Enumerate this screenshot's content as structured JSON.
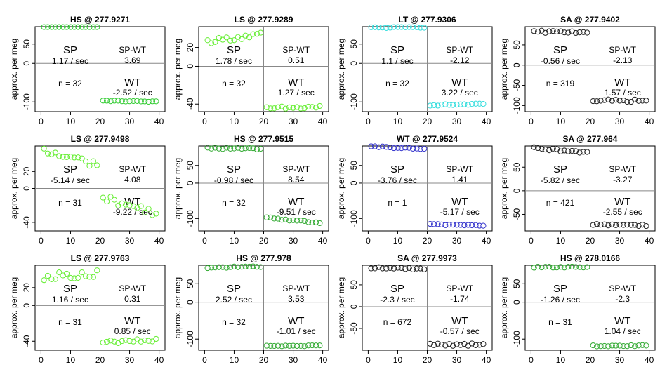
{
  "chart_data": [
    {
      "type": "scatter",
      "title": "HS @ 277.9271",
      "ylabel": "approx. per meg",
      "ylim": [
        -125,
        95
      ],
      "xlim": [
        -2,
        42
      ],
      "yticks": [
        "0",
        "50",
        "-100"
      ],
      "ytick_values": [
        0,
        50,
        -100
      ],
      "xticks": [
        "0",
        "10",
        "20",
        "30",
        "40"
      ],
      "sp_label": "SP",
      "sp_rate": "1.17 / sec",
      "diff_label": "SP-WT",
      "diff_value": "3.69",
      "n_text": "n = 32",
      "wt_label": "WT",
      "wt_rate": "-2.52 / sec",
      "color": "#33cc33",
      "sp_level": 95,
      "sp_slope": 0.05,
      "sp_noise": 1.0,
      "wt_level": -98,
      "wt_slope": -0.12,
      "wt_noise": 1.0
    },
    {
      "type": "scatter",
      "title": "LS @ 277.9289",
      "ylabel": "approx. per meg",
      "ylim": [
        -48,
        42
      ],
      "xlim": [
        -2,
        42
      ],
      "yticks": [
        "20",
        "0",
        "-40"
      ],
      "ytick_values": [
        20,
        0,
        -40
      ],
      "xticks": [
        "0",
        "10",
        "20",
        "30",
        "40"
      ],
      "sp_label": "SP",
      "sp_rate": "1.78 / sec",
      "diff_label": "SP-WT",
      "diff_value": "0.51",
      "n_text": "n = 32",
      "wt_label": "WT",
      "wt_rate": "1.27 / sec",
      "color": "#66ee33",
      "sp_level": 30,
      "sp_slope": 0.4,
      "sp_noise": 2.5,
      "wt_level": -44,
      "wt_slope": 0.1,
      "wt_noise": 2.0
    },
    {
      "type": "scatter",
      "title": "LT @ 277.9306",
      "ylabel": "approx. per meg",
      "ylim": [
        -125,
        95
      ],
      "xlim": [
        -2,
        42
      ],
      "yticks": [
        "50",
        "0",
        "-100"
      ],
      "ytick_values": [
        50,
        0,
        -100
      ],
      "xticks": [
        "0",
        "10",
        "20",
        "30",
        "40"
      ],
      "sp_label": "SP",
      "sp_rate": "1.1 / sec",
      "diff_label": "SP-WT",
      "diff_value": "-2.12",
      "n_text": "n = 32",
      "wt_label": "WT",
      "wt_rate": "3.22 / sec",
      "color": "#33dddd",
      "sp_level": 93,
      "sp_slope": 0.05,
      "sp_noise": 1.5,
      "wt_level": -107,
      "wt_slope": 0.15,
      "wt_noise": 1.5
    },
    {
      "type": "scatter",
      "title": "SA @ 277.9402",
      "ylabel": "approx. per meg",
      "ylim": [
        -115,
        95
      ],
      "xlim": [
        -2,
        42
      ],
      "yticks": [
        "50",
        "0",
        "-50",
        "-100"
      ],
      "ytick_values": [
        50,
        0,
        -50,
        -100
      ],
      "xticks": [
        "0",
        "10",
        "20",
        "30",
        "40"
      ],
      "sp_label": "SP",
      "sp_rate": "-0.56 / sec",
      "diff_label": "SP-WT",
      "diff_value": "-2.13",
      "n_text": "n = 319",
      "wt_label": "WT",
      "wt_rate": "1.57 / sec",
      "color": "#222222",
      "sp_level": 82,
      "sp_slope": 0.0,
      "sp_noise": 3.0,
      "wt_level": -88,
      "wt_slope": 0.0,
      "wt_noise": 3.0
    },
    {
      "type": "scatter",
      "title": "LS @ 277.9498",
      "ylabel": "approx. per meg",
      "ylim": [
        -50,
        50
      ],
      "xlim": [
        -2,
        42
      ],
      "yticks": [
        "20",
        "0",
        "-40"
      ],
      "ytick_values": [
        20,
        0,
        -40
      ],
      "xticks": [
        "0",
        "10",
        "20",
        "30",
        "40"
      ],
      "sp_label": "SP",
      "sp_rate": "-5.14 / sec",
      "diff_label": "SP-WT",
      "diff_value": "4.08",
      "n_text": "n = 31",
      "wt_label": "WT",
      "wt_rate": "-9.22 / sec",
      "color": "#66ee33",
      "sp_level": 36,
      "sp_slope": -0.8,
      "sp_noise": 5.0,
      "wt_level": -20,
      "wt_slope": -1.0,
      "wt_noise": 4.0
    },
    {
      "type": "scatter",
      "title": "HS @ 277.9515",
      "ylabel": "approx. per meg",
      "ylim": [
        -135,
        105
      ],
      "xlim": [
        -2,
        42
      ],
      "yticks": [
        "50",
        "0",
        "-100"
      ],
      "ytick_values": [
        50,
        0,
        -100
      ],
      "xticks": [
        "0",
        "10",
        "20",
        "30",
        "40"
      ],
      "sp_label": "SP",
      "sp_rate": "-0.98 / sec",
      "diff_label": "SP-WT",
      "diff_value": "8.54",
      "n_text": "n = 32",
      "wt_label": "WT",
      "wt_rate": "-9.51 / sec",
      "color": "#33aa33",
      "sp_level": 98,
      "sp_slope": -0.1,
      "sp_noise": 2.0,
      "wt_level": -105,
      "wt_slope": -0.8,
      "wt_noise": 2.0
    },
    {
      "type": "scatter",
      "title": "WT @ 277.9524",
      "ylabel": "approx. per meg",
      "ylim": [
        -135,
        105
      ],
      "xlim": [
        -2,
        42
      ],
      "yticks": [
        "50",
        "0",
        "-100"
      ],
      "ytick_values": [
        50,
        0,
        -100
      ],
      "xticks": [
        "0",
        "10",
        "20",
        "30",
        "40"
      ],
      "sp_label": "SP",
      "sp_rate": "-3.76 / sec",
      "diff_label": "SP-WT",
      "diff_value": "1.41",
      "n_text": "n = 1",
      "wt_label": "WT",
      "wt_rate": "-5.17 / sec",
      "color": "#3333cc",
      "sp_level": 100,
      "sp_slope": -0.4,
      "sp_noise": 2.0,
      "wt_level": -118,
      "wt_slope": -0.15,
      "wt_noise": 1.5
    },
    {
      "type": "scatter",
      "title": "SA @ 277.964",
      "ylabel": "approx. per meg",
      "ylim": [
        -85,
        95
      ],
      "xlim": [
        -2,
        42
      ],
      "yticks": [
        "50",
        "0",
        "-50"
      ],
      "ytick_values": [
        50,
        0,
        -50
      ],
      "xticks": [
        "0",
        "10",
        "20",
        "30",
        "40"
      ],
      "sp_label": "SP",
      "sp_rate": "-5.82 / sec",
      "diff_label": "SP-WT",
      "diff_value": "-3.27",
      "n_text": "n = 421",
      "wt_label": "WT",
      "wt_rate": "-2.55 / sec",
      "color": "#222222",
      "sp_level": 85,
      "sp_slope": -0.5,
      "sp_noise": 3.0,
      "wt_level": -72,
      "wt_slope": -0.1,
      "wt_noise": 2.0
    },
    {
      "type": "scatter",
      "title": "LS @ 277.9763",
      "ylabel": "approx. per meg",
      "ylim": [
        -50,
        45
      ],
      "xlim": [
        -2,
        42
      ],
      "yticks": [
        "20",
        "0",
        "-40"
      ],
      "ytick_values": [
        20,
        0,
        -40
      ],
      "xticks": [
        "0",
        "10",
        "20",
        "30",
        "40"
      ],
      "sp_label": "SP",
      "sp_rate": "1.16 / sec",
      "diff_label": "SP-WT",
      "diff_value": "0.31",
      "n_text": "n = 31",
      "wt_label": "WT",
      "wt_rate": "0.85 / sec",
      "color": "#66ee33",
      "sp_level": 34,
      "sp_slope": 0.2,
      "sp_noise": 4.0,
      "wt_level": -40,
      "wt_slope": 0.1,
      "wt_noise": 2.0
    },
    {
      "type": "scatter",
      "title": "HS @ 277.978",
      "ylabel": "approx. per meg",
      "ylim": [
        -130,
        100
      ],
      "xlim": [
        -2,
        42
      ],
      "yticks": [
        "50",
        "0",
        "-100"
      ],
      "ytick_values": [
        50,
        0,
        -100
      ],
      "xticks": [
        "0",
        "10",
        "20",
        "30",
        "40"
      ],
      "sp_label": "SP",
      "sp_rate": "2.52 / sec",
      "diff_label": "SP-WT",
      "diff_value": "3.53",
      "n_text": "n = 32",
      "wt_label": "WT",
      "wt_rate": "-1.01 / sec",
      "color": "#33aa33",
      "sp_level": 95,
      "sp_slope": 0.15,
      "sp_noise": 1.5,
      "wt_level": -118,
      "wt_slope": 0.0,
      "wt_noise": 1.5
    },
    {
      "type": "scatter",
      "title": "SA @ 277.9973",
      "ylabel": "approx. per meg",
      "ylim": [
        -100,
        95
      ],
      "xlim": [
        -2,
        42
      ],
      "yticks": [
        "50",
        "0",
        "-50"
      ],
      "ytick_values": [
        50,
        0,
        -50
      ],
      "xticks": [
        "0",
        "10",
        "20",
        "30",
        "40"
      ],
      "sp_label": "SP",
      "sp_rate": "-2.3 / sec",
      "diff_label": "SP-WT",
      "diff_value": "-1.74",
      "n_text": "n = 672",
      "wt_label": "WT",
      "wt_rate": "-0.57 / sec",
      "color": "#222222",
      "sp_level": 88,
      "sp_slope": -0.15,
      "sp_noise": 2.0,
      "wt_level": -87,
      "wt_slope": 0.0,
      "wt_noise": 3.0
    },
    {
      "type": "scatter",
      "title": "HS @ 278.0166",
      "ylabel": "approx. per meg",
      "ylim": [
        -130,
        100
      ],
      "xlim": [
        -2,
        42
      ],
      "yticks": [
        "50",
        "0",
        "-100"
      ],
      "ytick_values": [
        50,
        0,
        -100
      ],
      "xticks": [
        "0",
        "10",
        "20",
        "30",
        "40"
      ],
      "sp_label": "SP",
      "sp_rate": "-1.26 / sec",
      "diff_label": "SP-WT",
      "diff_value": "-2.3",
      "n_text": "n = 31",
      "wt_label": "WT",
      "wt_rate": "1.04 / sec",
      "color": "#33aa33",
      "sp_level": 95,
      "sp_slope": 0.05,
      "sp_noise": 1.5,
      "wt_level": -118,
      "wt_slope": 0.05,
      "wt_noise": 1.5
    }
  ]
}
